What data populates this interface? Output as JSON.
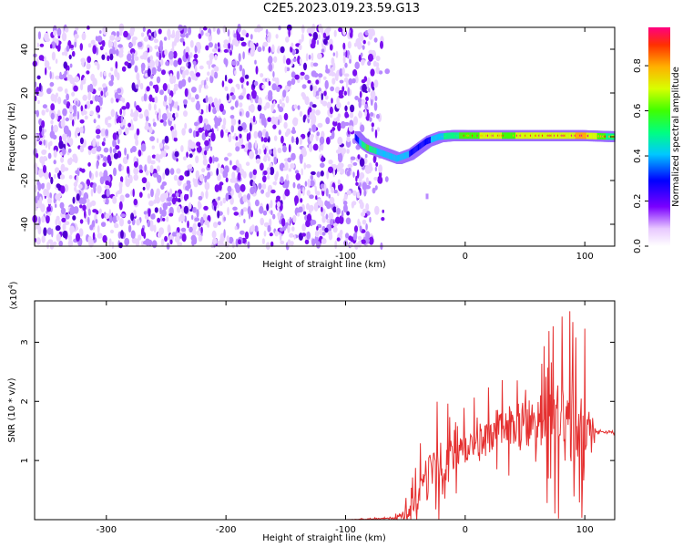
{
  "page": {
    "title": "C2E5.2023.019.23.59.G13"
  },
  "chart_data": [
    {
      "type": "heatmap",
      "xlabel": "Height of straight line (km)",
      "ylabel": "Frequency (Hz)",
      "xlim": [
        -360,
        125
      ],
      "ylim": [
        -50,
        50
      ],
      "xticks": [
        -300,
        -200,
        -100,
        0,
        100
      ],
      "yticks": [
        -40,
        -20,
        0,
        20,
        40
      ],
      "colorbar": {
        "label": "Normalized spectral amplitude",
        "range": [
          0.0,
          0.97
        ],
        "ticks": [
          "0.0",
          "0.2",
          "0.4",
          "0.6",
          "0.8"
        ],
        "colormap": "rainbow"
      },
      "noise_region": {
        "x_range": [
          -360,
          -73
        ],
        "y_range": [
          -50,
          50
        ],
        "amplitude": [
          0.0,
          0.2
        ]
      },
      "signal_ridge": {
        "x": [
          -90,
          -85,
          -80,
          -75,
          -70,
          -65,
          -60,
          -55,
          -50,
          -45,
          -40,
          -35,
          -30,
          -20,
          -10,
          0,
          20,
          40,
          60,
          80,
          100,
          125
        ],
        "y": [
          0,
          -3,
          -5,
          -6,
          -7,
          -8,
          -9,
          -10,
          -9,
          -8,
          -6,
          -4,
          -2,
          0,
          0.5,
          0.5,
          0.5,
          0.5,
          0.5,
          0.5,
          0.5,
          0
        ],
        "amplitude": [
          0.25,
          0.55,
          0.7,
          0.6,
          0.55,
          0.5,
          0.45,
          0.45,
          0.5,
          0.45,
          0.4,
          0.35,
          0.4,
          0.55,
          0.6,
          0.7,
          0.8,
          0.75,
          0.85,
          0.8,
          0.9,
          0.6
        ]
      }
    },
    {
      "type": "line",
      "xlabel": "Height of straight line (km)",
      "ylabel": "SNR (10 * v/v)",
      "yscale_label": "(x10",
      "yscale_exp": "4",
      "xlim": [
        -360,
        125
      ],
      "ylim": [
        0,
        3.7
      ],
      "xticks": [
        -300,
        -200,
        -100,
        0,
        100
      ],
      "yticks": [
        1,
        2,
        3
      ],
      "series": [
        {
          "color": "#e53030",
          "x": [
            -360,
            -300,
            -200,
            -100,
            -60,
            -50,
            -45,
            -40,
            -35,
            -30,
            -25,
            -20,
            -15,
            -10,
            -5,
            0,
            10,
            20,
            30,
            40,
            50,
            60,
            70,
            80,
            90,
            100,
            105,
            110,
            125
          ],
          "y": [
            0.0,
            0.0,
            0.0,
            0.0,
            0.02,
            0.1,
            0.2,
            0.35,
            0.55,
            0.75,
            0.9,
            0.95,
            1.0,
            1.1,
            1.15,
            1.2,
            1.3,
            1.4,
            1.5,
            1.55,
            1.6,
            1.65,
            1.65,
            1.6,
            1.6,
            1.55,
            1.5,
            1.48,
            1.48
          ],
          "noise_amplitude": [
            0.0,
            0.0,
            0.0,
            0.0,
            0.03,
            0.2,
            0.4,
            0.5,
            0.7,
            0.8,
            0.9,
            0.9,
            0.7,
            0.5,
            0.5,
            0.5,
            0.6,
            0.6,
            0.6,
            0.7,
            0.8,
            0.9,
            1.1,
            1.3,
            1.4,
            1.2,
            0.3,
            0.05,
            0.05
          ]
        }
      ]
    }
  ]
}
